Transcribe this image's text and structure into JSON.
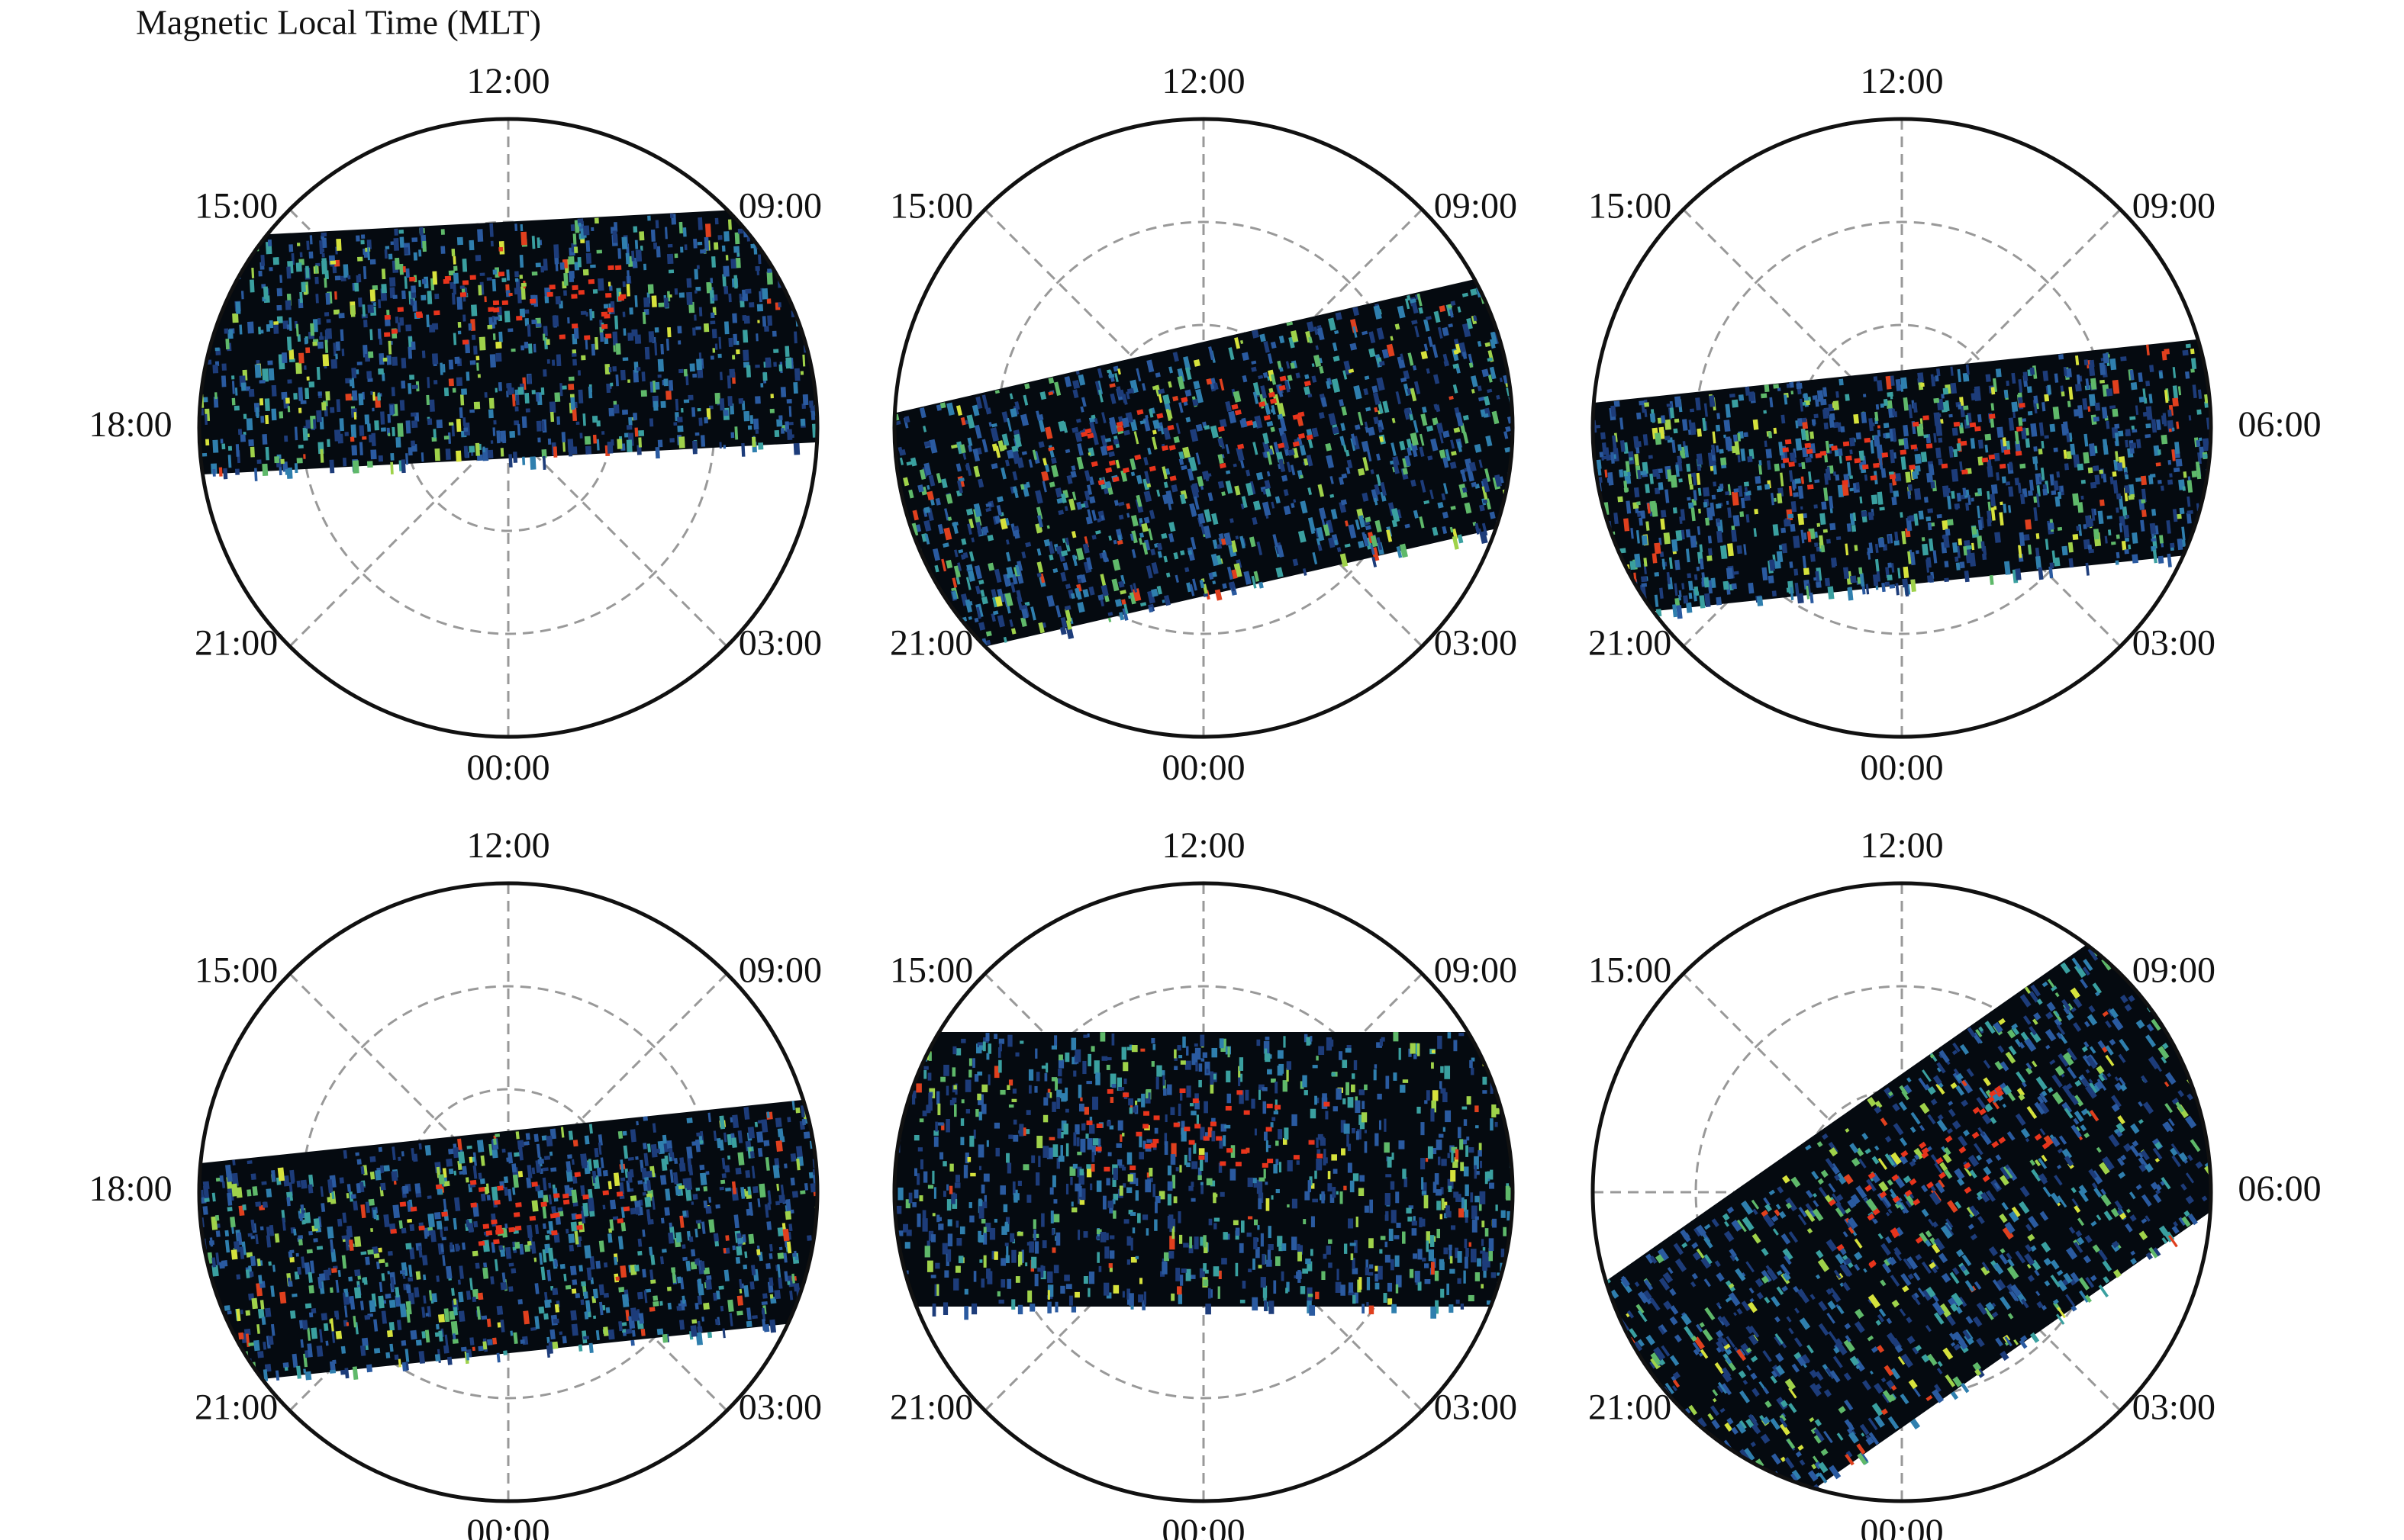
{
  "title": "Magnetic Local Time (MLT)",
  "panels": [
    {
      "mlt_labels": [
        "12:00",
        "09:00",
        null,
        "03:00",
        "00:00",
        "21:00",
        "18:00",
        "15:00"
      ]
    },
    {
      "mlt_labels": [
        "12:00",
        "09:00",
        null,
        "03:00",
        "00:00",
        "21:00",
        null,
        "15:00"
      ]
    },
    {
      "mlt_labels": [
        "12:00",
        "09:00",
        "06:00",
        "03:00",
        "00:00",
        "21:00",
        null,
        "15:00"
      ]
    },
    {
      "mlt_labels": [
        "12:00",
        "09:00",
        null,
        "03:00",
        "00:00",
        "21:00",
        "18:00",
        "15:00"
      ]
    },
    {
      "mlt_labels": [
        "12:00",
        "09:00",
        null,
        "03:00",
        "00:00",
        "21:00",
        null,
        "15:00"
      ]
    },
    {
      "mlt_labels": [
        "12:00",
        "09:00",
        "06:00",
        "03:00",
        "00:00",
        "21:00",
        null,
        "15:00"
      ]
    }
  ]
}
